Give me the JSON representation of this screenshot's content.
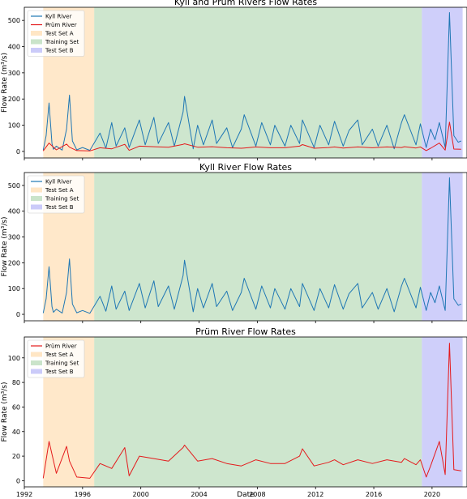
{
  "figure": {
    "xlabel": "Date",
    "ylabel": "Flow Rate (m³/s)",
    "x_ticks": [
      "1992",
      "1996",
      "2000",
      "2004",
      "2008",
      "2012",
      "2016",
      "2020"
    ]
  },
  "chart_data": [
    {
      "type": "line",
      "title": "Kyll and Prüm Rivers Flow Rates",
      "xlabel": "",
      "ylabel": "Flow Rate (m³/s)",
      "xlim": [
        1992.0,
        2022.4
      ],
      "ylim": [
        -25,
        550
      ],
      "y_ticks": [
        0,
        100,
        200,
        300,
        400,
        500
      ],
      "legend_position": "top-left",
      "shaded_regions": [
        {
          "name": "Test Set A",
          "x_start": 1993.3,
          "x_end": 1996.8,
          "color": "#ffd59e"
        },
        {
          "name": "Training Set",
          "x_start": 1996.8,
          "x_end": 2019.3,
          "color": "#a6d2a6"
        },
        {
          "name": "Test Set B",
          "x_start": 2019.3,
          "x_end": 2022.1,
          "color": "#a8a8f5"
        }
      ],
      "series": [
        {
          "name": "Kyll River",
          "color": "#1f77b4",
          "x": [
            1993.3,
            1993.5,
            1993.7,
            1993.9,
            1994.0,
            1994.2,
            1994.6,
            1994.9,
            1995.1,
            1995.3,
            1995.6,
            1996.0,
            1996.5,
            1997.2,
            1997.6,
            1998.0,
            1998.3,
            1998.9,
            1999.2,
            1999.9,
            2000.3,
            2000.9,
            2001.2,
            2001.9,
            2002.3,
            2002.9,
            2003.0,
            2003.6,
            2003.9,
            2004.3,
            2004.9,
            2005.2,
            2005.9,
            2006.3,
            2006.9,
            2007.1,
            2007.9,
            2008.3,
            2008.9,
            2009.2,
            2009.9,
            2010.3,
            2010.9,
            2011.1,
            2011.9,
            2012.3,
            2012.9,
            2013.3,
            2013.9,
            2014.3,
            2014.9,
            2015.2,
            2015.9,
            2016.3,
            2016.9,
            2017.4,
            2017.9,
            2018.1,
            2018.9,
            2019.2,
            2019.6,
            2019.9,
            2020.2,
            2020.5,
            2020.9,
            2021.2,
            2021.5,
            2021.8,
            2022.0
          ],
          "values": [
            5,
            60,
            185,
            30,
            8,
            20,
            5,
            85,
            215,
            40,
            6,
            15,
            4,
            70,
            12,
            110,
            20,
            90,
            15,
            120,
            25,
            130,
            30,
            110,
            20,
            150,
            210,
            10,
            100,
            25,
            120,
            30,
            90,
            15,
            85,
            140,
            20,
            110,
            25,
            100,
            20,
            100,
            30,
            120,
            15,
            100,
            25,
            115,
            20,
            80,
            120,
            25,
            85,
            20,
            100,
            10,
            110,
            140,
            25,
            105,
            15,
            85,
            45,
            110,
            15,
            530,
            60,
            35,
            40
          ]
        },
        {
          "name": "Prüm River",
          "color": "#e41a1c",
          "x": [
            1993.3,
            1993.7,
            1994.2,
            1994.9,
            1995.1,
            1995.6,
            1996.5,
            1997.2,
            1998.0,
            1998.9,
            1999.2,
            1999.9,
            2000.9,
            2001.9,
            2002.9,
            2003.0,
            2003.9,
            2004.9,
            2005.9,
            2006.9,
            2007.1,
            2007.9,
            2008.9,
            2009.9,
            2010.9,
            2011.1,
            2011.9,
            2012.9,
            2013.3,
            2013.9,
            2014.9,
            2015.9,
            2016.9,
            2017.9,
            2018.1,
            2018.9,
            2019.2,
            2019.6,
            2019.9,
            2020.5,
            2020.9,
            2021.2,
            2021.5,
            2022.0
          ],
          "values": [
            2,
            32,
            6,
            28,
            16,
            3,
            2,
            14,
            10,
            27,
            4,
            20,
            18,
            16,
            27,
            29,
            16,
            18,
            14,
            12,
            13,
            17,
            14,
            14,
            20,
            26,
            12,
            15,
            17,
            13,
            17,
            14,
            17,
            15,
            18,
            13,
            17,
            3,
            12,
            32,
            5,
            112,
            9,
            8
          ]
        }
      ]
    },
    {
      "type": "line",
      "title": "Kyll River Flow Rates",
      "xlabel": "",
      "ylabel": "Flow Rate (m³/s)",
      "xlim": [
        1992.0,
        2022.4
      ],
      "ylim": [
        -25,
        550
      ],
      "y_ticks": [
        0,
        100,
        200,
        300,
        400,
        500
      ],
      "legend_position": "top-left",
      "shaded_regions": [
        {
          "name": "Test Set A",
          "x_start": 1993.3,
          "x_end": 1996.8,
          "color": "#ffd59e"
        },
        {
          "name": "Training Set",
          "x_start": 1996.8,
          "x_end": 2019.3,
          "color": "#a6d2a6"
        },
        {
          "name": "Test Set B",
          "x_start": 2019.3,
          "x_end": 2022.1,
          "color": "#a8a8f5"
        }
      ],
      "series": [
        {
          "name": "Kyll River",
          "color": "#1f77b4",
          "x": [
            1993.3,
            1993.5,
            1993.7,
            1993.9,
            1994.0,
            1994.2,
            1994.6,
            1994.9,
            1995.1,
            1995.3,
            1995.6,
            1996.0,
            1996.5,
            1997.2,
            1997.6,
            1998.0,
            1998.3,
            1998.9,
            1999.2,
            1999.9,
            2000.3,
            2000.9,
            2001.2,
            2001.9,
            2002.3,
            2002.9,
            2003.0,
            2003.6,
            2003.9,
            2004.3,
            2004.9,
            2005.2,
            2005.9,
            2006.3,
            2006.9,
            2007.1,
            2007.9,
            2008.3,
            2008.9,
            2009.2,
            2009.9,
            2010.3,
            2010.9,
            2011.1,
            2011.9,
            2012.3,
            2012.9,
            2013.3,
            2013.9,
            2014.3,
            2014.9,
            2015.2,
            2015.9,
            2016.3,
            2016.9,
            2017.4,
            2017.9,
            2018.1,
            2018.9,
            2019.2,
            2019.6,
            2019.9,
            2020.2,
            2020.5,
            2020.9,
            2021.2,
            2021.5,
            2021.8,
            2022.0
          ],
          "values": [
            5,
            60,
            185,
            30,
            8,
            20,
            5,
            85,
            215,
            40,
            6,
            15,
            4,
            70,
            12,
            110,
            20,
            90,
            15,
            120,
            25,
            130,
            30,
            110,
            20,
            150,
            210,
            10,
            100,
            25,
            120,
            30,
            90,
            15,
            85,
            140,
            20,
            110,
            25,
            100,
            20,
            100,
            30,
            120,
            15,
            100,
            25,
            115,
            20,
            80,
            120,
            25,
            85,
            20,
            100,
            10,
            110,
            140,
            25,
            105,
            15,
            85,
            45,
            110,
            15,
            530,
            60,
            35,
            40
          ]
        }
      ]
    },
    {
      "type": "line",
      "title": "Prüm River Flow Rates",
      "xlabel": "Date",
      "ylabel": "Flow Rate (m³/s)",
      "xlim": [
        1992.0,
        2022.4
      ],
      "ylim": [
        -5,
        117
      ],
      "y_ticks": [
        0,
        20,
        40,
        60,
        80,
        100
      ],
      "legend_position": "top-left",
      "shaded_regions": [
        {
          "name": "Test Set A",
          "x_start": 1993.3,
          "x_end": 1996.8,
          "color": "#ffd59e"
        },
        {
          "name": "Training Set",
          "x_start": 1996.8,
          "x_end": 2019.3,
          "color": "#a6d2a6"
        },
        {
          "name": "Test Set B",
          "x_start": 2019.3,
          "x_end": 2022.1,
          "color": "#a8a8f5"
        }
      ],
      "series": [
        {
          "name": "Prüm River",
          "color": "#e41a1c",
          "x": [
            1993.3,
            1993.7,
            1994.2,
            1994.9,
            1995.1,
            1995.6,
            1996.5,
            1997.2,
            1998.0,
            1998.9,
            1999.2,
            1999.9,
            2000.9,
            2001.9,
            2002.9,
            2003.0,
            2003.9,
            2004.9,
            2005.9,
            2006.9,
            2007.1,
            2007.9,
            2008.9,
            2009.9,
            2010.9,
            2011.1,
            2011.9,
            2012.9,
            2013.3,
            2013.9,
            2014.9,
            2015.9,
            2016.9,
            2017.9,
            2018.1,
            2018.9,
            2019.2,
            2019.6,
            2019.9,
            2020.5,
            2020.9,
            2021.2,
            2021.5,
            2022.0
          ],
          "values": [
            2,
            32,
            6,
            28,
            16,
            3,
            2,
            14,
            10,
            27,
            4,
            20,
            18,
            16,
            27,
            29,
            16,
            18,
            14,
            12,
            13,
            17,
            14,
            14,
            20,
            26,
            12,
            15,
            17,
            13,
            17,
            14,
            17,
            15,
            18,
            13,
            17,
            3,
            12,
            32,
            5,
            112,
            9,
            8
          ]
        }
      ]
    }
  ]
}
